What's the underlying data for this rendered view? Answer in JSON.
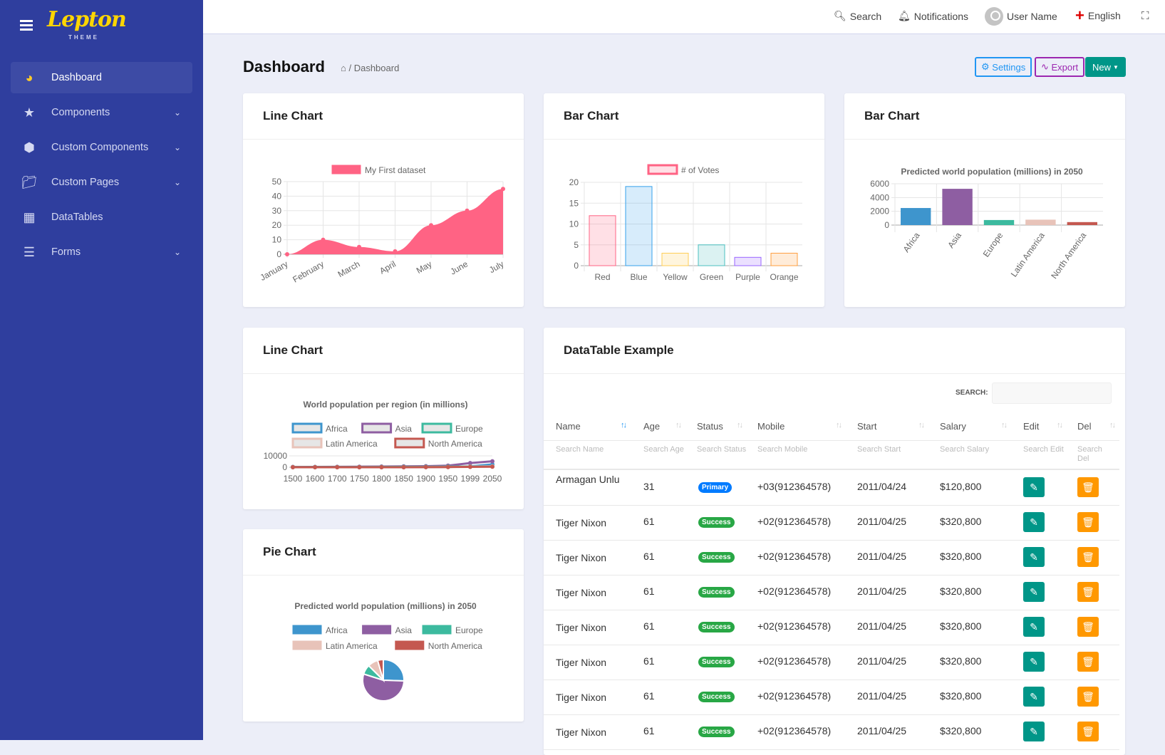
{
  "brand": {
    "logo": "Lepton",
    "logo_sub": "THEME"
  },
  "sidebar": {
    "items": [
      {
        "label": "Dashboard",
        "icon": "dashboard-icon"
      },
      {
        "label": "Components",
        "icon": "star-icon",
        "chevron": true
      },
      {
        "label": "Custom Components",
        "icon": "cube-icon",
        "chevron": true
      },
      {
        "label": "Custom Pages",
        "icon": "folder-icon",
        "chevron": true
      },
      {
        "label": "DataTables",
        "icon": "table-icon"
      },
      {
        "label": "Forms",
        "icon": "list-icon",
        "chevron": true
      }
    ]
  },
  "topbar": {
    "search": "Search",
    "notifications": "Notifications",
    "user": "User Name",
    "language": "English"
  },
  "page": {
    "title": "Dashboard",
    "breadcrumb": "/ Dashboard",
    "settings": "Settings",
    "export": "Export",
    "new": "New"
  },
  "colors": {
    "sidebar": "#2f3e9e",
    "primary": "#2196f3",
    "export": "#9c27b0",
    "new": "#009688",
    "edit": "#009688",
    "delete": "#ff9800",
    "success": "#28a745",
    "primary_badge": "#007bff"
  },
  "cards": {
    "line1": "Line Chart",
    "bar1": "Bar Chart",
    "bar2": "Bar Chart",
    "line2": "Line Chart",
    "pie": "Pie Chart",
    "table": "DataTable Example"
  },
  "chart_data": [
    {
      "type": "area",
      "legend": [
        "My First dataset"
      ],
      "categories": [
        "January",
        "February",
        "March",
        "April",
        "May",
        "June",
        "July"
      ],
      "series": [
        {
          "name": "My First dataset",
          "values": [
            0,
            10,
            5,
            2,
            20,
            30,
            45
          ],
          "color": "#ff6384"
        }
      ],
      "yticks": [
        "0",
        "10",
        "20",
        "30",
        "40",
        "50"
      ],
      "ylim": [
        0,
        50
      ],
      "grid": true
    },
    {
      "type": "bar",
      "legend": [
        "# of Votes"
      ],
      "categories": [
        "Red",
        "Blue",
        "Yellow",
        "Green",
        "Purple",
        "Orange"
      ],
      "series": [
        {
          "name": "# of Votes",
          "values": [
            12,
            19,
            3,
            5,
            2,
            3
          ]
        }
      ],
      "colors": [
        "#ff6384",
        "#36a2eb",
        "#ffce56",
        "#4bc0c0",
        "#9966ff",
        "#ff9f40"
      ],
      "yticks": [
        "0",
        "5",
        "10",
        "15",
        "20"
      ],
      "ylim": [
        0,
        20
      ],
      "grid": true
    },
    {
      "type": "bar",
      "title": "Predicted world population (millions) in 2050",
      "categories": [
        "Africa",
        "Asia",
        "Europe",
        "Latin America",
        "North America"
      ],
      "values": [
        2478,
        5267,
        734,
        784,
        433
      ],
      "colors": [
        "#3e95cd",
        "#8e5ea2",
        "#3cba9f",
        "#e8c3b9",
        "#c45850"
      ],
      "yticks": [
        "0",
        "2000",
        "4000",
        "6000"
      ],
      "ylim": [
        0,
        6000
      ],
      "grid": true
    },
    {
      "type": "line",
      "title": "World population per region (in millions)",
      "categories": [
        "1500",
        "1600",
        "1700",
        "1750",
        "1800",
        "1850",
        "1900",
        "1950",
        "1999",
        "2050"
      ],
      "series": [
        {
          "name": "Africa",
          "values": [
            86,
            114,
            106,
            106,
            107,
            111,
            133,
            221,
            783,
            2478
          ],
          "color": "#3e95cd"
        },
        {
          "name": "Asia",
          "values": [
            282,
            350,
            411,
            502,
            635,
            809,
            947,
            1402,
            3700,
            5267
          ],
          "color": "#8e5ea2"
        },
        {
          "name": "Europe",
          "values": [
            168,
            170,
            178,
            190,
            203,
            276,
            408,
            547,
            675,
            734
          ],
          "color": "#3cba9f"
        },
        {
          "name": "Latin America",
          "values": [
            40,
            20,
            10,
            16,
            24,
            38,
            74,
            167,
            508,
            784
          ],
          "color": "#e8c3b9"
        },
        {
          "name": "North America",
          "values": [
            6,
            3,
            2,
            2,
            7,
            26,
            82,
            172,
            312,
            433
          ],
          "color": "#c45850"
        }
      ],
      "yticks": [
        "0",
        "10000"
      ],
      "ylim": [
        0,
        10000
      ]
    },
    {
      "type": "pie",
      "title": "Predicted world population (millions) in 2050",
      "categories": [
        "Africa",
        "Asia",
        "Europe",
        "Latin America",
        "North America"
      ],
      "values": [
        2478,
        5267,
        734,
        784,
        433
      ],
      "colors": [
        "#3e95cd",
        "#8e5ea2",
        "#3cba9f",
        "#e8c3b9",
        "#c45850"
      ]
    }
  ],
  "table": {
    "search_label": "SEARCH:",
    "columns": [
      "Name",
      "Age",
      "Status",
      "Mobile",
      "Start",
      "Salary",
      "Edit",
      "Del"
    ],
    "filters": [
      "Search Name",
      "Search Age",
      "Search Status",
      "Search Mobile",
      "Search Start",
      "Search Salary",
      "Search Edit",
      "Search Del"
    ],
    "rows": [
      {
        "name": "Armagan Unlu",
        "age": "31",
        "status": "Primary",
        "mobile": "+03(912364578)",
        "start": "2011/04/24",
        "salary": "$120,800"
      },
      {
        "name": "Tiger Nixon",
        "age": "61",
        "status": "Success",
        "mobile": "+02(912364578)",
        "start": "2011/04/25",
        "salary": "$320,800"
      },
      {
        "name": "Tiger Nixon",
        "age": "61",
        "status": "Success",
        "mobile": "+02(912364578)",
        "start": "2011/04/25",
        "salary": "$320,800"
      },
      {
        "name": "Tiger Nixon",
        "age": "61",
        "status": "Success",
        "mobile": "+02(912364578)",
        "start": "2011/04/25",
        "salary": "$320,800"
      },
      {
        "name": "Tiger Nixon",
        "age": "61",
        "status": "Success",
        "mobile": "+02(912364578)",
        "start": "2011/04/25",
        "salary": "$320,800"
      },
      {
        "name": "Tiger Nixon",
        "age": "61",
        "status": "Success",
        "mobile": "+02(912364578)",
        "start": "2011/04/25",
        "salary": "$320,800"
      },
      {
        "name": "Tiger Nixon",
        "age": "61",
        "status": "Success",
        "mobile": "+02(912364578)",
        "start": "2011/04/25",
        "salary": "$320,800"
      },
      {
        "name": "Tiger Nixon",
        "age": "61",
        "status": "Success",
        "mobile": "+02(912364578)",
        "start": "2011/04/25",
        "salary": "$320,800"
      }
    ]
  }
}
